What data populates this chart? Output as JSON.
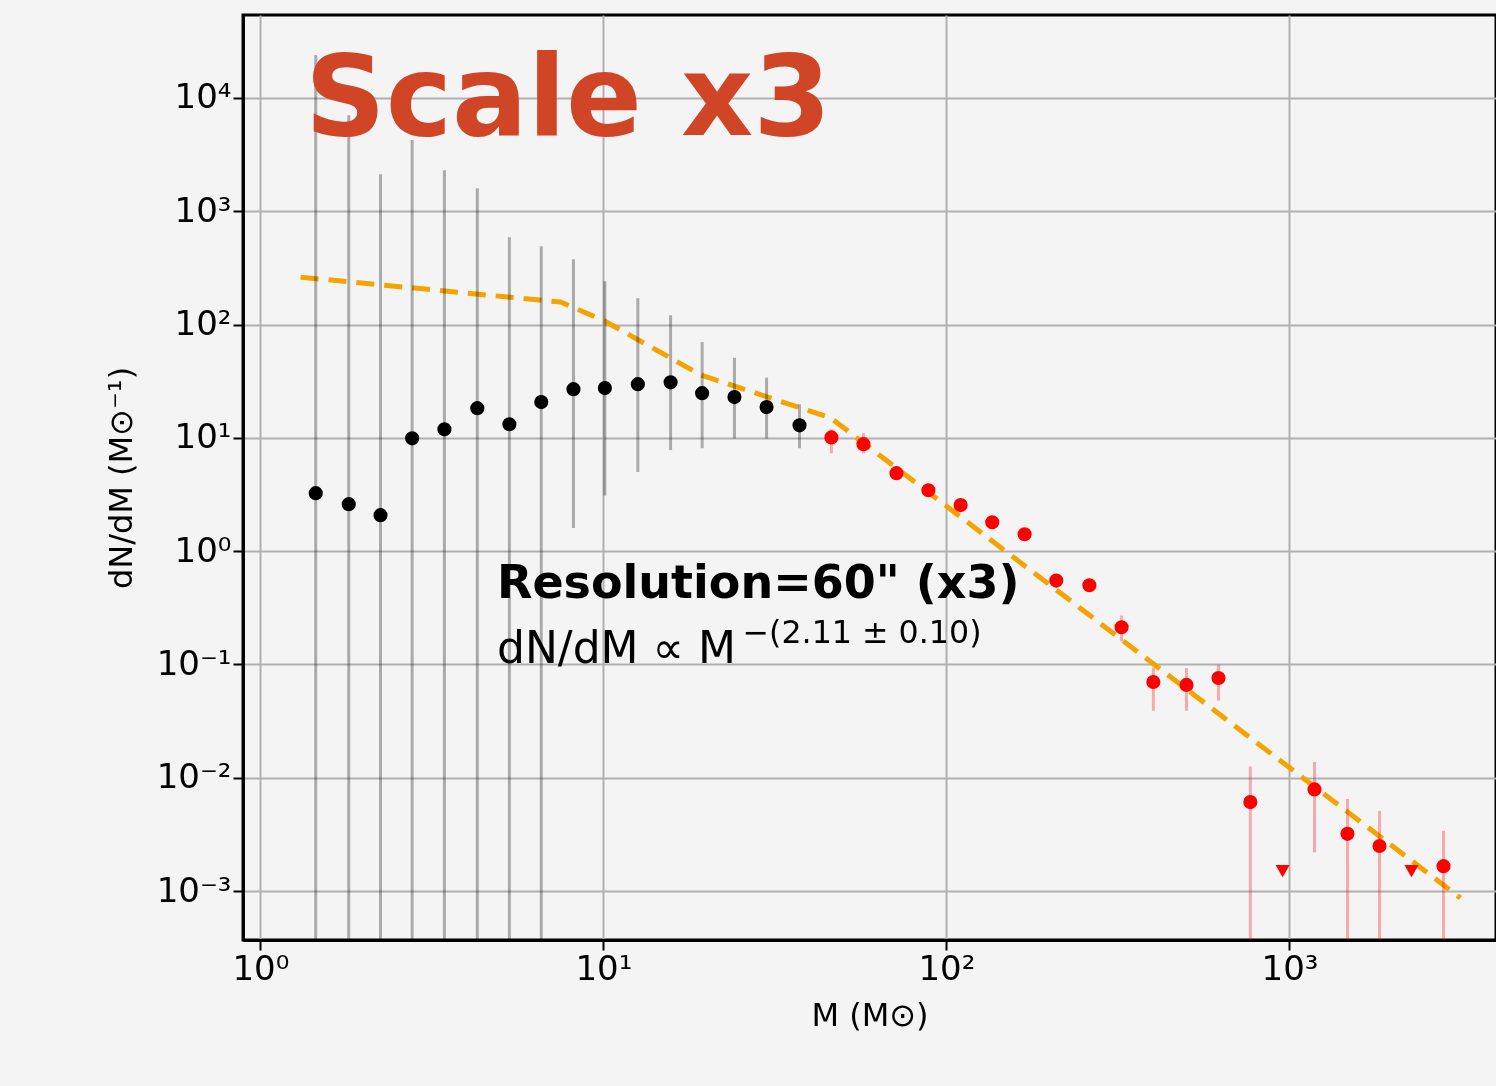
{
  "chart_data": {
    "type": "scatter",
    "title": "Scale x3",
    "xlabel": "M (M⊙)",
    "ylabel": "dN/dM (M⊙⁻¹)",
    "log": "xy",
    "grid": true,
    "xlim": [
      0.89,
      4000
    ],
    "xticks": [
      {
        "value": 1,
        "label": "10⁰"
      },
      {
        "value": 10,
        "label": "10¹"
      },
      {
        "value": 100,
        "label": "10²"
      },
      {
        "value": 1000,
        "label": "10³"
      }
    ],
    "ylim": [
      0.00037,
      54000
    ],
    "yticks": [
      {
        "value": 0.001,
        "label": "10⁻³"
      },
      {
        "value": 0.01,
        "label": "10⁻²"
      },
      {
        "value": 0.1,
        "label": "10⁻¹"
      },
      {
        "value": 1,
        "label": "10⁰"
      },
      {
        "value": 10,
        "label": "10¹"
      },
      {
        "value": 100,
        "label": "10²"
      },
      {
        "value": 1000,
        "label": "10³"
      },
      {
        "value": 10000,
        "label": "10⁴"
      }
    ],
    "annotations": [
      "Resolution=60\" (x3)",
      "dN/dM ∝ M$^{−(2.11 ± 0.10)}$"
    ],
    "series": [
      {
        "type": "line",
        "color": "#f5a300",
        "line_style": "dashed",
        "marker": "none",
        "x": [
          1.31,
          7.5,
          10,
          19.2,
          46,
          3150
        ],
        "values": [
          262,
          158,
          109,
          36,
          15,
          0.00087
        ]
      },
      {
        "color": "#000000",
        "marker": "circle",
        "x": [
          1.45,
          1.81,
          2.24,
          2.77,
          3.44,
          4.29,
          5.32,
          6.59,
          8.18,
          10.1,
          12.6,
          15.7,
          19.4,
          24.1,
          29.9,
          37.3
        ],
        "values": [
          3.25,
          2.6,
          2.08,
          9.9,
          11.9,
          18.3,
          13.2,
          20.7,
          26.9,
          27.5,
          29.8,
          30.9,
          24.8,
          22.9,
          18.7,
          12.9
        ],
        "errors": [
          [
            0.00037,
            23900
          ],
          [
            0.00037,
            7050
          ],
          [
            0.00037,
            2120
          ],
          [
            0.00037,
            4250
          ],
          [
            0.00037,
            2300
          ],
          [
            0.00037,
            1600
          ],
          [
            0.00037,
            590
          ],
          [
            0.00037,
            492
          ],
          [
            1.6,
            378
          ],
          [
            3.1,
            241
          ],
          [
            5.0,
            171
          ],
          [
            7.8,
            121
          ],
          [
            8.1,
            70
          ],
          [
            9.9,
            51
          ],
          [
            9.9,
            34
          ],
          [
            8.1,
            19.8
          ]
        ]
      },
      {
        "color": "#ff0000",
        "marker": "circle",
        "x": [
          46.2,
          57.3,
          71.5,
          88.6,
          110,
          136,
          169,
          209,
          261,
          324,
          401,
          501,
          621,
          769,
          1183,
          1476,
          1830,
          2812
        ],
        "values": [
          10.1,
          8.8,
          4.88,
          3.45,
          2.55,
          1.8,
          1.41,
          0.55,
          0.5,
          0.213,
          0.07,
          0.066,
          0.076,
          0.0061,
          0.0079,
          0.0032,
          0.0025,
          0.00166
        ],
        "errors": [
          [
            7.3,
            11.9
          ],
          [
            7.3,
            11.0
          ],
          null,
          null,
          null,
          null,
          null,
          null,
          null,
          [
            0.16,
            0.27
          ],
          [
            0.039,
            0.094
          ],
          [
            0.039,
            0.093
          ],
          [
            0.048,
            0.1
          ],
          [
            0.00037,
            0.0126
          ],
          [
            0.0022,
            0.0138
          ],
          [
            0.00037,
            0.0065
          ],
          [
            0.00037,
            0.0051
          ],
          [
            0.00037,
            0.0034
          ]
        ]
      },
      {
        "color": "#ff0000",
        "marker": "triangle",
        "x": [
          955,
          2268
        ],
        "values": [
          0.0015,
          0.0015
        ]
      }
    ]
  }
}
